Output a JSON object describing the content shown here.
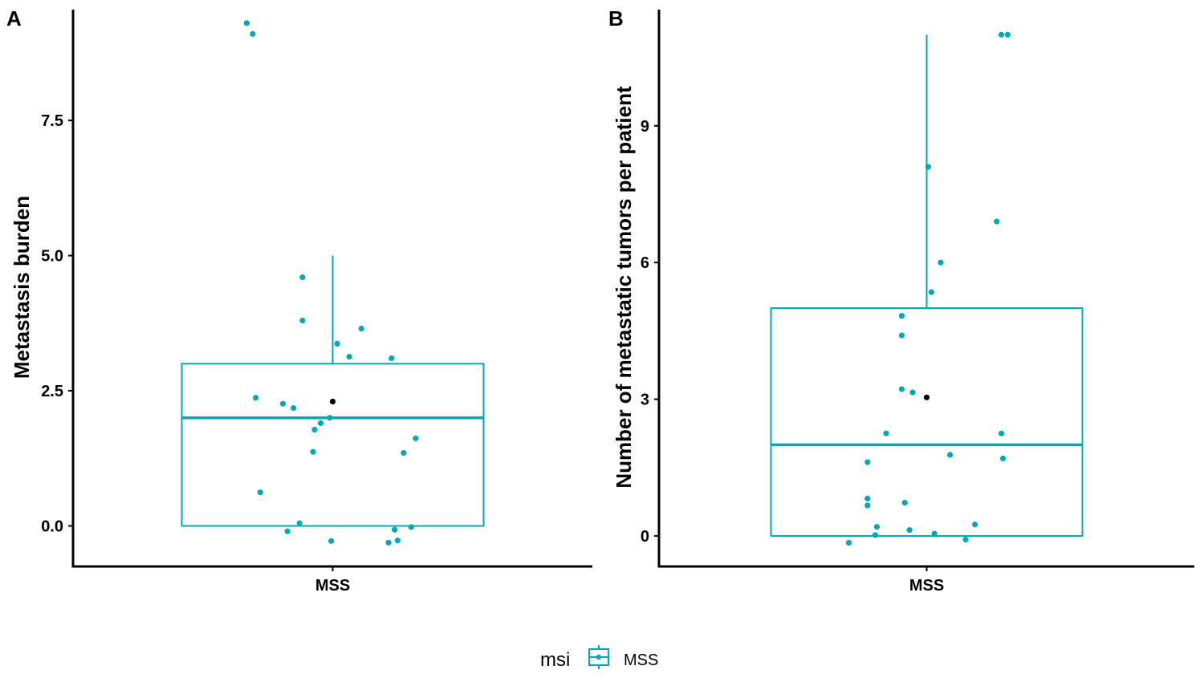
{
  "legend": {
    "title": "msi",
    "entries": [
      "MSS"
    ],
    "position": "bottom"
  },
  "colors": {
    "box": "#00A9B5",
    "point": "#00A9B5",
    "mean": "#000000",
    "axis": "#000000"
  },
  "chart_data": [
    {
      "tag": "A",
      "type": "box",
      "title": "",
      "xlabel": "",
      "ylabel": "Metastasis burden",
      "categories": [
        "MSS"
      ],
      "ylim": [
        -0.75,
        9.55
      ],
      "yticks": [
        0.0,
        2.5,
        5.0,
        7.5
      ],
      "ytick_labels": [
        "0.0",
        "2.5",
        "5.0",
        "7.5"
      ],
      "box": {
        "q1": 0.0,
        "median": 2.0,
        "q3": 3.0,
        "whisker_low": 0.0,
        "whisker_high": 5.0
      },
      "mean": 2.3,
      "points": [
        {
          "x": -0.57,
          "y": 9.3
        },
        {
          "x": -0.53,
          "y": 9.1
        },
        {
          "x": -0.2,
          "y": 4.6
        },
        {
          "x": -0.2,
          "y": 3.8
        },
        {
          "x": 0.19,
          "y": 3.65
        },
        {
          "x": 0.03,
          "y": 3.37
        },
        {
          "x": 0.11,
          "y": 3.13
        },
        {
          "x": 0.39,
          "y": 3.1
        },
        {
          "x": -0.51,
          "y": 2.37
        },
        {
          "x": -0.33,
          "y": 2.26
        },
        {
          "x": -0.26,
          "y": 2.18
        },
        {
          "x": -0.02,
          "y": 2.0
        },
        {
          "x": -0.08,
          "y": 1.9
        },
        {
          "x": -0.12,
          "y": 1.78
        },
        {
          "x": 0.55,
          "y": 1.62
        },
        {
          "x": -0.13,
          "y": 1.37
        },
        {
          "x": 0.47,
          "y": 1.35
        },
        {
          "x": -0.48,
          "y": 0.62
        },
        {
          "x": -0.22,
          "y": 0.05
        },
        {
          "x": 0.52,
          "y": -0.02
        },
        {
          "x": -0.3,
          "y": -0.1
        },
        {
          "x": 0.41,
          "y": -0.07
        },
        {
          "x": -0.01,
          "y": -0.28
        },
        {
          "x": 0.43,
          "y": -0.27
        },
        {
          "x": 0.37,
          "y": -0.31
        }
      ]
    },
    {
      "tag": "B",
      "type": "box",
      "title": "",
      "xlabel": "",
      "ylabel": "Number of metastatic tumors per patient",
      "categories": [
        "MSS"
      ],
      "ylim": [
        -0.67,
        11.55
      ],
      "yticks": [
        0,
        3,
        6,
        9
      ],
      "ytick_labels": [
        "0",
        "3",
        "6",
        "9"
      ],
      "box": {
        "q1": 0,
        "median": 2,
        "q3": 5,
        "whisker_low": 0,
        "whisker_high": 11
      },
      "mean": 3.04,
      "points": [
        {
          "x": 0.48,
          "y": 11.0
        },
        {
          "x": 0.52,
          "y": 11.0
        },
        {
          "x": 0.01,
          "y": 8.1
        },
        {
          "x": 0.45,
          "y": 6.9
        },
        {
          "x": 0.09,
          "y": 6.0
        },
        {
          "x": 0.03,
          "y": 5.35
        },
        {
          "x": -0.16,
          "y": 4.83
        },
        {
          "x": -0.16,
          "y": 4.4
        },
        {
          "x": -0.16,
          "y": 3.22
        },
        {
          "x": -0.09,
          "y": 3.15
        },
        {
          "x": -0.26,
          "y": 2.25
        },
        {
          "x": 0.48,
          "y": 2.25
        },
        {
          "x": 0.15,
          "y": 1.78
        },
        {
          "x": 0.49,
          "y": 1.7
        },
        {
          "x": -0.38,
          "y": 1.62
        },
        {
          "x": -0.38,
          "y": 0.82
        },
        {
          "x": -0.38,
          "y": 0.67
        },
        {
          "x": -0.14,
          "y": 0.73
        },
        {
          "x": -0.32,
          "y": 0.2
        },
        {
          "x": -0.11,
          "y": 0.13
        },
        {
          "x": 0.31,
          "y": 0.25
        },
        {
          "x": 0.05,
          "y": 0.05
        },
        {
          "x": -0.33,
          "y": 0.02
        },
        {
          "x": 0.25,
          "y": -0.08
        },
        {
          "x": -0.5,
          "y": -0.15
        }
      ]
    }
  ]
}
